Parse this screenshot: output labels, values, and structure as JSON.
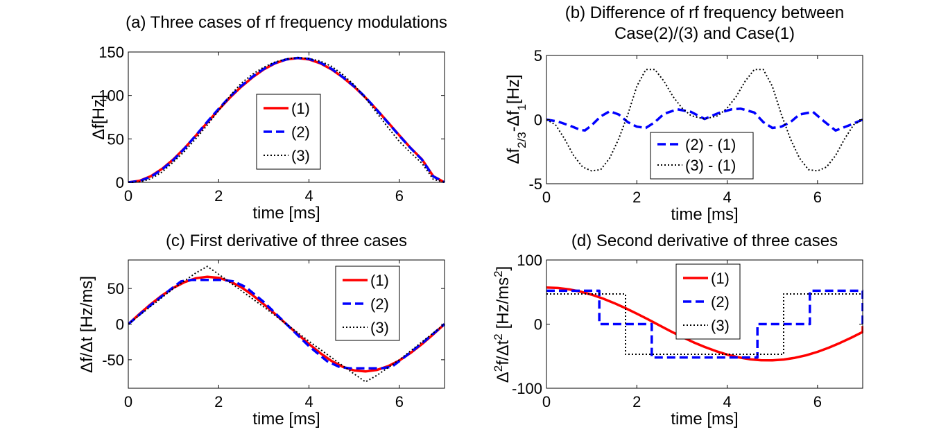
{
  "chart_data": [
    {
      "panel": "a",
      "type": "line",
      "title": "(a) Three cases of rf frequency modulations",
      "xlabel": "time [ms]",
      "ylabel": "Δf[Hz]",
      "xlim": [
        0,
        7
      ],
      "ylim": [
        0,
        150
      ],
      "xticks": [
        0,
        2,
        4,
        6
      ],
      "yticks": [
        0,
        50,
        100,
        150
      ],
      "legend_position": "center",
      "series": [
        {
          "name": "(1)",
          "color": "#ff0000",
          "style": "solid",
          "x": [
            0,
            0.25,
            0.5,
            0.75,
            1,
            1.25,
            1.5,
            1.75,
            2,
            2.25,
            2.5,
            2.75,
            3,
            3.25,
            3.5,
            3.75,
            4,
            4.25,
            4.5,
            4.75,
            5,
            5.25,
            5.5,
            5.75,
            6,
            6.25,
            6.5,
            6.75,
            7
          ],
          "y": [
            0,
            1.8,
            7.1,
            15.6,
            26.6,
            39.6,
            54.0,
            68.9,
            83.6,
            97.5,
            110,
            120.8,
            130,
            137,
            141.5,
            143,
            141.5,
            137,
            130,
            120.8,
            110,
            97.5,
            83.6,
            68.9,
            54.0,
            39.6,
            26.6,
            7.1,
            0
          ]
        },
        {
          "name": "(2)",
          "color": "#0000ff",
          "style": "dashed",
          "x": [
            0,
            0.25,
            0.5,
            0.75,
            1,
            1.25,
            1.5,
            1.75,
            2,
            2.25,
            2.5,
            2.75,
            3,
            3.25,
            3.5,
            3.75,
            4,
            4.25,
            4.5,
            4.75,
            5,
            5.25,
            5.5,
            5.75,
            6,
            6.25,
            6.5,
            6.75,
            7
          ],
          "y": [
            0,
            1.5,
            6.5,
            14.9,
            25.8,
            39.2,
            54.3,
            69.7,
            84.6,
            98.6,
            111,
            121.6,
            130.6,
            137.4,
            141.5,
            143.2,
            142,
            137.7,
            130.6,
            121,
            110.5,
            97.9,
            83.4,
            68.5,
            53.6,
            39.3,
            26.2,
            6.8,
            0
          ]
        },
        {
          "name": "(3)",
          "color": "#000000",
          "style": "dotted",
          "x": [
            0,
            0.25,
            0.5,
            0.75,
            1,
            1.25,
            1.5,
            1.75,
            2,
            2.25,
            2.5,
            2.75,
            3,
            3.25,
            3.5,
            3.75,
            4,
            4.25,
            4.5,
            4.75,
            5,
            5.25,
            5.5,
            5.75,
            6,
            6.25,
            6.5,
            6.75,
            7
          ],
          "y": [
            0,
            0.5,
            4.0,
            12.0,
            23.5,
            36.0,
            50.5,
            66.0,
            82.5,
            99.5,
            114,
            124.5,
            132.5,
            138.5,
            142,
            143.5,
            142.5,
            139.5,
            133.5,
            124,
            112,
            97,
            80,
            63,
            47,
            34,
            22,
            3.5,
            0
          ]
        }
      ]
    },
    {
      "panel": "b",
      "type": "line",
      "title": [
        "(b) Difference of rf frequency between",
        "Case(2)/(3) and Case(1)"
      ],
      "xlabel": "time [ms]",
      "ylabel": "Δf2/3-Δf1[Hz]",
      "xlim": [
        0,
        7
      ],
      "ylim": [
        -5,
        5
      ],
      "xticks": [
        0,
        2,
        4,
        6
      ],
      "yticks": [
        -5,
        0,
        5
      ],
      "legend_position": "bottom-center",
      "series": [
        {
          "name": "(2) - (1)",
          "color": "#0000ff",
          "style": "dashed",
          "x": [
            0,
            0.25,
            0.5,
            0.75,
            0.85,
            1,
            1.2,
            1.4,
            1.6,
            1.8,
            2,
            2.2,
            2.4,
            2.6,
            2.9,
            3.2,
            3.5,
            3.8,
            4.1,
            4.3,
            4.6,
            4.8,
            5.0,
            5.2,
            5.4,
            5.6,
            5.9,
            6.15,
            6.4,
            6.7,
            7
          ],
          "y": [
            0,
            -0.15,
            -0.45,
            -0.8,
            -0.85,
            -0.45,
            0.25,
            0.65,
            0.4,
            -0.2,
            -0.55,
            -0.65,
            -0.2,
            0.45,
            0.8,
            0.6,
            0.05,
            0.5,
            0.8,
            0.85,
            0.55,
            -0.2,
            -0.65,
            -0.55,
            -0.2,
            0.4,
            0.6,
            -0.15,
            -0.85,
            -0.45,
            0
          ]
        },
        {
          "name": "(3) - (1)",
          "color": "#000000",
          "style": "dotted",
          "x": [
            0,
            0.2,
            0.4,
            0.6,
            0.8,
            1.0,
            1.2,
            1.4,
            1.6,
            1.8,
            2.0,
            2.2,
            2.4,
            2.6,
            2.8,
            3.0,
            3.2,
            3.5,
            3.8,
            4.0,
            4.2,
            4.4,
            4.6,
            4.8,
            5.0,
            5.2,
            5.4,
            5.6,
            5.8,
            6.0,
            6.2,
            6.4,
            6.6,
            6.8,
            7
          ],
          "y": [
            0,
            -0.4,
            -1.5,
            -2.8,
            -3.7,
            -4.0,
            -3.9,
            -3.0,
            -1.5,
            0.4,
            2.6,
            3.9,
            3.9,
            3.0,
            1.8,
            0.9,
            0.3,
            0.05,
            0.3,
            0.9,
            1.8,
            3.0,
            3.9,
            3.9,
            2.6,
            0.4,
            -1.5,
            -3.0,
            -3.9,
            -4.0,
            -3.7,
            -2.8,
            -1.5,
            -0.4,
            0
          ]
        }
      ]
    },
    {
      "panel": "c",
      "type": "line",
      "title": "(c) First derivative of three cases",
      "xlabel": "time [ms]",
      "ylabel": "Δf/Δt [Hz/ms]",
      "xlim": [
        0,
        7
      ],
      "ylim": [
        -90,
        90
      ],
      "xticks": [
        0,
        2,
        4,
        6
      ],
      "yticks": [
        -50,
        0,
        50
      ],
      "legend_position": "top-right",
      "series": [
        {
          "name": "(1)",
          "color": "#ff0000",
          "style": "solid",
          "x": [
            0,
            0.25,
            0.5,
            0.75,
            1,
            1.25,
            1.5,
            1.75,
            2,
            2.25,
            2.5,
            2.75,
            3,
            3.25,
            3.5,
            3.75,
            4,
            4.25,
            4.5,
            4.75,
            5,
            5.25,
            5.5,
            5.75,
            6,
            6.25,
            6.5,
            6.75,
            7
          ],
          "y": [
            0,
            14.4,
            28.1,
            40.5,
            51.0,
            59.1,
            64.4,
            66.5,
            65.0,
            60.0,
            51.8,
            40.8,
            27.9,
            14.2,
            0,
            -14.2,
            -27.9,
            -40.8,
            -51.8,
            -60.0,
            -65.0,
            -66.5,
            -64.4,
            -59.1,
            -51.0,
            -40.5,
            -28.1,
            -14.4,
            0
          ]
        },
        {
          "name": "(2)",
          "color": "#0000ff",
          "style": "dashed",
          "x": [
            0,
            0.5,
            1.0,
            1.17,
            1.4,
            1.75,
            2.1,
            2.33,
            2.6,
            3.0,
            3.5,
            4.0,
            4.4,
            4.67,
            4.9,
            5.25,
            5.6,
            5.83,
            6.0,
            6.5,
            7
          ],
          "y": [
            0,
            27,
            52,
            60,
            62,
            62,
            62,
            60,
            52,
            31,
            0,
            -31,
            -52,
            -60,
            -62,
            -62,
            -62,
            -60,
            -52,
            -27,
            0
          ]
        },
        {
          "name": "(3)",
          "color": "#000000",
          "style": "dotted",
          "x": [
            0,
            0.5,
            1.0,
            1.5,
            1.75,
            2.0,
            2.5,
            3.0,
            3.5,
            4.0,
            4.5,
            5.0,
            5.25,
            5.5,
            6.0,
            6.5,
            7
          ],
          "y": [
            0,
            25,
            50,
            72,
            81,
            70,
            47,
            24,
            0,
            -24,
            -47,
            -70,
            -81,
            -72,
            -50,
            -25,
            0
          ]
        }
      ]
    },
    {
      "panel": "d",
      "type": "line",
      "title": "(d) Second derivative of three cases",
      "xlabel": "time [ms]",
      "ylabel": "Δ²f/Δt² [Hz/ms²]",
      "xlim": [
        0,
        7
      ],
      "ylim": [
        -100,
        100
      ],
      "xticks": [
        0,
        2,
        4,
        6
      ],
      "yticks": [
        -100,
        0,
        100
      ],
      "legend_position": "top-center",
      "series": [
        {
          "name": "(1)",
          "color": "#ff0000",
          "style": "solid",
          "x": [
            0,
            0.25,
            0.5,
            0.75,
            1,
            1.25,
            1.5,
            1.75,
            2,
            2.25,
            2.5,
            2.75,
            3,
            3.25,
            3.5,
            3.75,
            4,
            4.25,
            4.5,
            4.75,
            5,
            5.25,
            5.5,
            5.75,
            6,
            6.25,
            6.5,
            6.75,
            7,
            7
          ],
          "y": [
            57,
            56.3,
            54.2,
            50.7,
            45.9,
            39.9,
            32.8,
            24.9,
            16.3,
            7.3,
            -1.9,
            -11.1,
            -19.9,
            -28.2,
            -35.6,
            -42.1,
            -47.6,
            -51.8,
            -54.8,
            -56.3,
            -56.4,
            -55.2,
            -52.5,
            -48.5,
            -43.2,
            -36.8,
            -29.3,
            -21.1,
            -12.2,
            -3
          ]
        },
        {
          "name": "(2)",
          "color": "#0000ff",
          "style": "dashed",
          "x": [
            0,
            1.17,
            1.17,
            1.75,
            1.75,
            2.33,
            2.33,
            4.67,
            4.67,
            5.25,
            5.25,
            5.83,
            5.83,
            7,
            7
          ],
          "y": [
            52,
            52,
            0,
            0,
            0,
            0,
            -52,
            -52,
            0,
            0,
            0,
            0,
            52,
            52,
            0
          ]
        },
        {
          "name": "(3)",
          "color": "#000000",
          "style": "dotted",
          "x": [
            0,
            1.75,
            1.75,
            5.25,
            5.25,
            7
          ],
          "y": [
            47,
            47,
            -47,
            -47,
            47,
            47
          ]
        }
      ]
    }
  ]
}
